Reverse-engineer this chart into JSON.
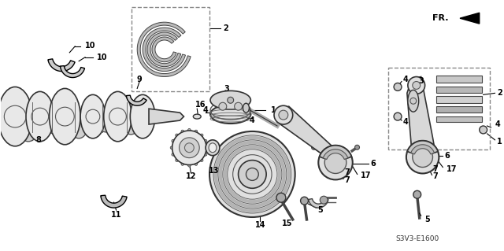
{
  "bg_color": "#ffffff",
  "diagram_code": "S3V3-E1600",
  "fr_label": "FR.",
  "fig_w": 6.4,
  "fig_h": 3.19,
  "dpi": 100
}
